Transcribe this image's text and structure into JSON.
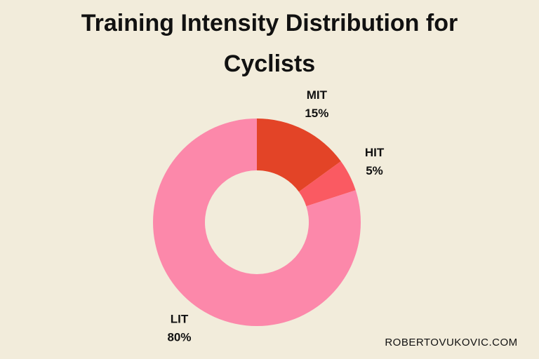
{
  "chart_data": {
    "type": "donut",
    "title": "Training Intensity Distribution for Cyclists",
    "categories": [
      "MIT",
      "HIT",
      "LIT"
    ],
    "values": [
      15,
      5,
      80
    ],
    "value_labels": [
      "15%",
      "5%",
      "80%"
    ],
    "colors": [
      "#e34427",
      "#fa5a62",
      "#fc88aa"
    ],
    "footer": "ROBERTOVUKOVIC.COM"
  }
}
